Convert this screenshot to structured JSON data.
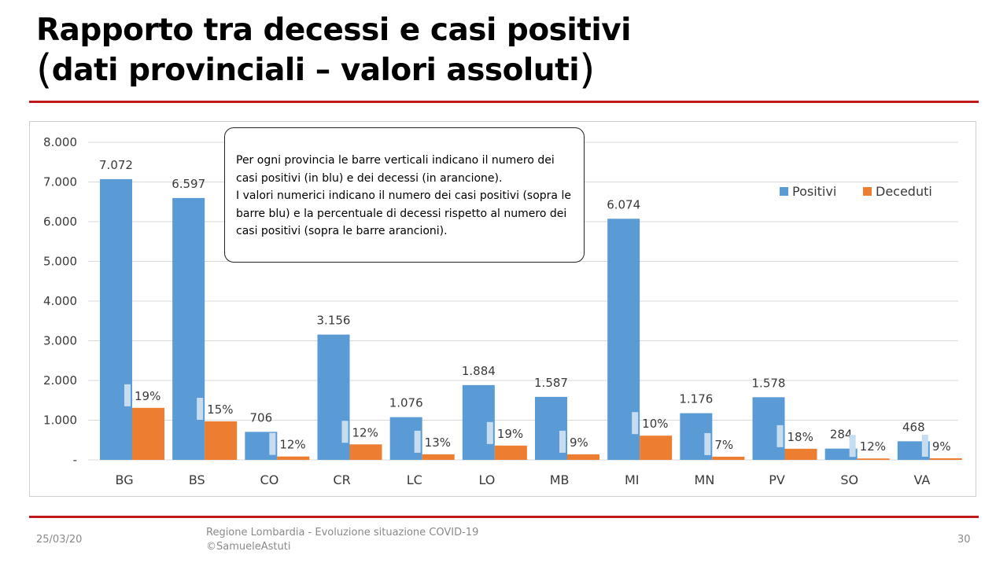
{
  "slide": {
    "title_line1": "Rapporto tra decessi e casi positivi",
    "title_line2": "dati provinciali – valori assoluti",
    "title_paren_open": "(",
    "title_paren_close": ")",
    "note": "Per ogni provincia le barre verticali indicano il numero dei casi positivi (in blu) e dei decessi (in arancione).\nI valori numerici indicano il numero dei casi positivi (sopra le barre blu) e la percentuale di decessi rispetto al numero dei casi positivi (sopra le barre arancioni).",
    "footer_date": "25/03/20",
    "footer_line1": "Regione Lombardia - Evoluzione situazione COVID-19",
    "footer_line2": "©SamueleAstuti",
    "page_number": "30",
    "colors": {
      "rule": "#c0181b",
      "positivi": "#5b9bd5",
      "deceduti": "#ed7d31"
    }
  },
  "chart_data": {
    "type": "bar",
    "title": "",
    "xlabel": "",
    "ylabel": "",
    "categories": [
      "BG",
      "BS",
      "CO",
      "CR",
      "LC",
      "LO",
      "MB",
      "MI",
      "MN",
      "PV",
      "SO",
      "VA"
    ],
    "series": [
      {
        "name": "Positivi",
        "color": "#5b9bd5",
        "values": [
          7072,
          6597,
          706,
          3156,
          1076,
          1884,
          1587,
          6074,
          1176,
          1578,
          284,
          468
        ],
        "labels": [
          "7.072",
          "6.597",
          "706",
          "3.156",
          "1.076",
          "1.884",
          "1.587",
          "6.074",
          "1.176",
          "1.578",
          "284",
          "468"
        ]
      },
      {
        "name": "Deceduti",
        "color": "#ed7d31",
        "values": [
          1310,
          970,
          85,
          390,
          140,
          360,
          140,
          610,
          80,
          280,
          35,
          40
        ],
        "labels": [
          "19%",
          "15%",
          "12%",
          "12%",
          "13%",
          "19%",
          "9%",
          "10%",
          "7%",
          "18%",
          "12%",
          "9%"
        ]
      }
    ],
    "ylim": [
      0,
      8000
    ],
    "yticks": [
      0,
      1000,
      2000,
      3000,
      4000,
      5000,
      6000,
      7000,
      8000
    ],
    "ytick_labels": [
      "-",
      "1.000",
      "2.000",
      "3.000",
      "4.000",
      "5.000",
      "6.000",
      "7.000",
      "8.000"
    ],
    "grid": true,
    "legend": "top-right"
  }
}
